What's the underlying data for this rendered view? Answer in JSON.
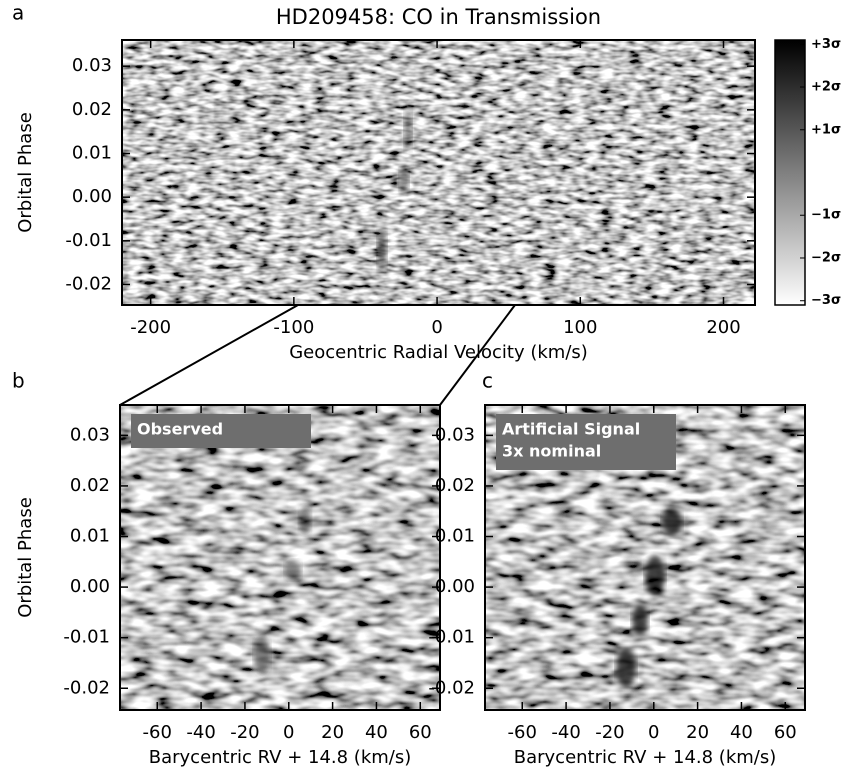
{
  "chart_data": [
    {
      "type": "heatmap",
      "panel_label": "a",
      "title": "HD209458: CO in Transmission",
      "x_label": "Geocentric Radial Velocity (km/s)",
      "y_label": "Orbital Phase",
      "xlim": [
        -220,
        222
      ],
      "xticks": [
        -200,
        -100,
        0,
        100,
        200
      ],
      "ylim": [
        -0.0247,
        0.036
      ],
      "yticks": [
        -0.02,
        -0.01,
        {
          "value": 0,
          "label": "0.00"
        },
        0.01,
        0.02,
        0.03
      ],
      "colorbar": {
        "ylim": [
          -3.1,
          3.1
        ],
        "ticks": [
          {
            "value": 3,
            "label": "+3σ"
          },
          {
            "value": 2,
            "label": "+2σ"
          },
          {
            "value": 1,
            "label": "+1σ"
          },
          {
            "value": -1,
            "label": "−1σ"
          },
          {
            "value": -2,
            "label": "−2σ"
          },
          {
            "value": -3,
            "label": "−3σ"
          }
        ]
      }
    },
    {
      "type": "heatmap",
      "panel_label": "b",
      "annotation": [
        "Observed"
      ],
      "x_label": "Barycentric RV + 14.8 (km/s)",
      "y_label": "Orbital Phase",
      "xlim": [
        -77,
        69
      ],
      "xticks": [
        -60,
        -40,
        -20,
        0,
        20,
        40,
        60
      ],
      "ylim": [
        -0.0243,
        0.036
      ],
      "yticks": [
        -0.02,
        -0.01,
        {
          "value": 0,
          "label": "0.00"
        },
        0.01,
        0.02,
        0.03
      ]
    },
    {
      "type": "heatmap",
      "panel_label": "c",
      "annotation": [
        "Artificial Signal",
        "3x nominal"
      ],
      "x_label": "Barycentric RV + 14.8 (km/s)",
      "xlim": [
        -77,
        69
      ],
      "xticks": [
        -60,
        -40,
        -20,
        0,
        20,
        40,
        60
      ],
      "ylim": [
        -0.0243,
        0.036
      ],
      "yticks": [
        -0.02,
        -0.01,
        {
          "value": 0,
          "label": "0.00"
        },
        0.01,
        0.02,
        0.03
      ]
    }
  ]
}
